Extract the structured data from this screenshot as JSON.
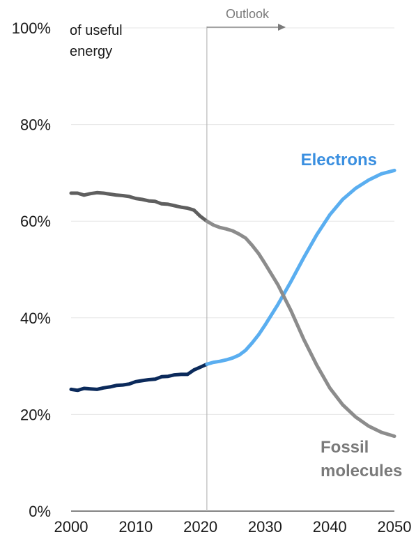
{
  "chart_data": {
    "type": "line",
    "ylabel": "of useful energy",
    "ylabel_lines": [
      "of useful",
      "energy"
    ],
    "xlim": [
      2000,
      2050
    ],
    "ylim": [
      0,
      100
    ],
    "x_ticks": [
      2000,
      2010,
      2020,
      2030,
      2040,
      2050
    ],
    "x_tick_labels": [
      "2000",
      "2010",
      "2020",
      "2030",
      "2040",
      "2050"
    ],
    "y_ticks": [
      0,
      20,
      40,
      60,
      80,
      100
    ],
    "y_tick_labels": [
      "0%",
      "20%",
      "40%",
      "60%",
      "80%",
      "100%"
    ],
    "grid": true,
    "annotation": {
      "label": "Outlook",
      "x": 2021
    },
    "series": [
      {
        "name": "Electrons",
        "historical_color": "#0b2a5b",
        "outlook_color": "#5aaef0",
        "label_color": "#3a8fe0",
        "historical": [
          [
            2000,
            25.2
          ],
          [
            2001,
            25.0
          ],
          [
            2002,
            25.4
          ],
          [
            2003,
            25.3
          ],
          [
            2004,
            25.2
          ],
          [
            2005,
            25.5
          ],
          [
            2006,
            25.7
          ],
          [
            2007,
            26.0
          ],
          [
            2008,
            26.1
          ],
          [
            2009,
            26.3
          ],
          [
            2010,
            26.8
          ],
          [
            2011,
            27.0
          ],
          [
            2012,
            27.2
          ],
          [
            2013,
            27.3
          ],
          [
            2014,
            27.8
          ],
          [
            2015,
            27.9
          ],
          [
            2016,
            28.2
          ],
          [
            2017,
            28.3
          ],
          [
            2018,
            28.3
          ],
          [
            2019,
            29.2
          ],
          [
            2020,
            29.8
          ],
          [
            2021,
            30.4
          ]
        ],
        "outlook": [
          [
            2021,
            30.4
          ],
          [
            2022,
            30.8
          ],
          [
            2023,
            31.0
          ],
          [
            2024,
            31.3
          ],
          [
            2025,
            31.7
          ],
          [
            2026,
            32.3
          ],
          [
            2027,
            33.3
          ],
          [
            2028,
            34.8
          ],
          [
            2029,
            36.5
          ],
          [
            2030,
            38.5
          ],
          [
            2032,
            42.8
          ],
          [
            2034,
            47.5
          ],
          [
            2036,
            52.5
          ],
          [
            2038,
            57.2
          ],
          [
            2040,
            61.3
          ],
          [
            2042,
            64.5
          ],
          [
            2044,
            66.8
          ],
          [
            2046,
            68.5
          ],
          [
            2048,
            69.8
          ],
          [
            2050,
            70.5
          ]
        ]
      },
      {
        "name": "Fossil molecules",
        "name_lines": [
          "Fossil",
          "molecules"
        ],
        "historical_color": "#5f5f5f",
        "outlook_color": "#8c8c8c",
        "label_color": "#7a7a7a",
        "historical": [
          [
            2000,
            65.8
          ],
          [
            2001,
            65.8
          ],
          [
            2002,
            65.4
          ],
          [
            2003,
            65.7
          ],
          [
            2004,
            65.9
          ],
          [
            2005,
            65.8
          ],
          [
            2006,
            65.6
          ],
          [
            2007,
            65.4
          ],
          [
            2008,
            65.3
          ],
          [
            2009,
            65.1
          ],
          [
            2010,
            64.7
          ],
          [
            2011,
            64.5
          ],
          [
            2012,
            64.2
          ],
          [
            2013,
            64.1
          ],
          [
            2014,
            63.6
          ],
          [
            2015,
            63.5
          ],
          [
            2016,
            63.2
          ],
          [
            2017,
            62.9
          ],
          [
            2018,
            62.7
          ],
          [
            2019,
            62.3
          ],
          [
            2020,
            61.0
          ],
          [
            2021,
            60.0
          ]
        ],
        "outlook": [
          [
            2021,
            60.0
          ],
          [
            2022,
            59.2
          ],
          [
            2023,
            58.7
          ],
          [
            2024,
            58.4
          ],
          [
            2025,
            58.0
          ],
          [
            2026,
            57.3
          ],
          [
            2027,
            56.5
          ],
          [
            2028,
            55.0
          ],
          [
            2029,
            53.3
          ],
          [
            2030,
            51.2
          ],
          [
            2032,
            46.8
          ],
          [
            2034,
            41.5
          ],
          [
            2036,
            35.5
          ],
          [
            2038,
            30.2
          ],
          [
            2040,
            25.5
          ],
          [
            2042,
            22.0
          ],
          [
            2044,
            19.5
          ],
          [
            2046,
            17.6
          ],
          [
            2048,
            16.3
          ],
          [
            2050,
            15.5
          ]
        ]
      }
    ]
  }
}
